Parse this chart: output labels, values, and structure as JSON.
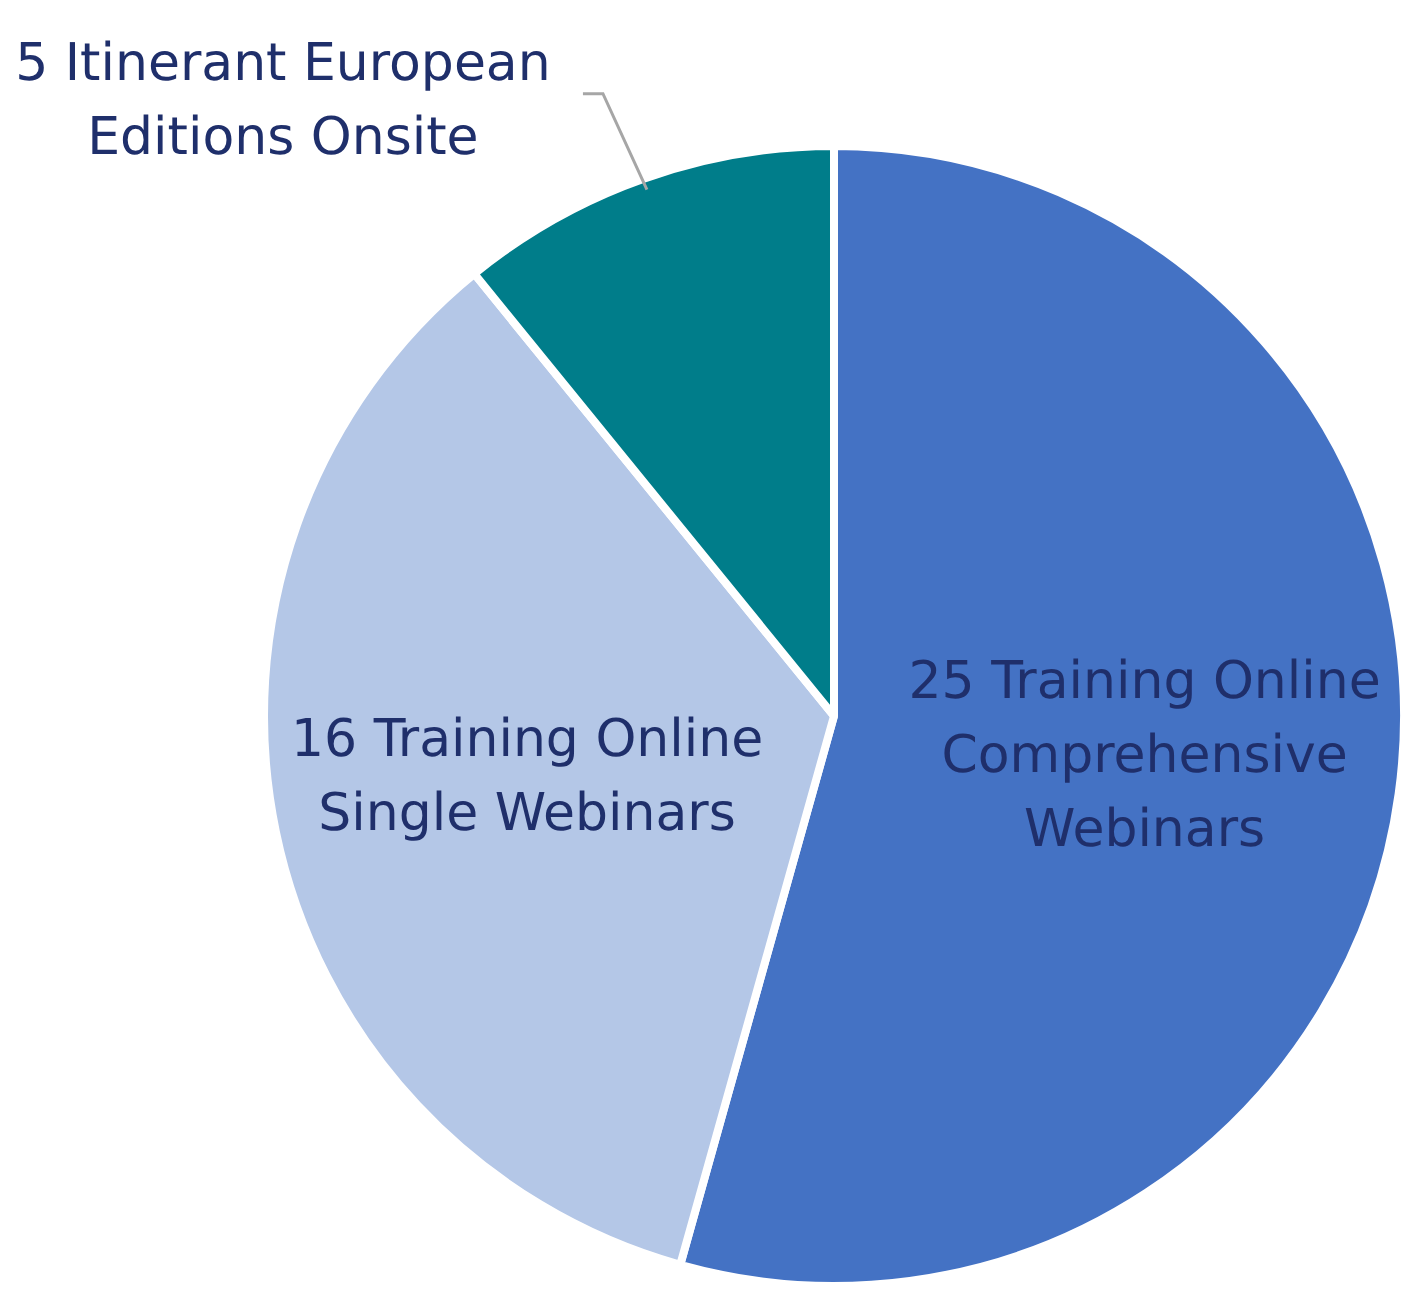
{
  "chart_data": {
    "type": "pie",
    "categories": [
      "25 Training Online Comprehensive Webinars",
      "16 Training Online Single Webinars",
      "5 Itinerant European Editions Onsite"
    ],
    "values": [
      25,
      16,
      5
    ],
    "colors": [
      "#4472c4",
      "#b4c7e7",
      "#007d8a"
    ],
    "legend": false
  }
}
